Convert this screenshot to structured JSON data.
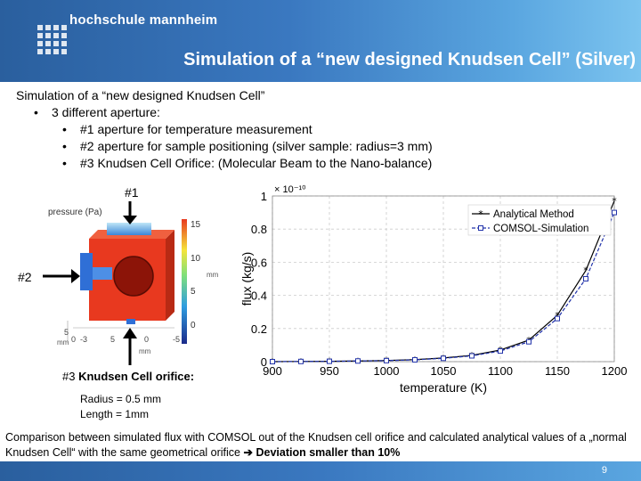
{
  "header": {
    "logo_text": "hochschule mannheim",
    "title": "Simulation of a “new designed Knudsen Cell” (Silver)"
  },
  "content": {
    "heading": "Simulation of a “new designed Knudsen Cell”",
    "bullet": "3 different aperture:",
    "sub_bullets": [
      "#1 aperture for temperature measurement",
      "#2 aperture for sample positioning (silver sample: radius=3 mm)",
      "#3 Knudsen Cell Orifice: (Molecular Beam to the Nano-balance)"
    ]
  },
  "simulation": {
    "label1": "#1",
    "label2": "#2",
    "label3_prefix": "#3 ",
    "label3_main": "Knudsen Cell orifice:",
    "colorbar_title": "pressure (Pa)",
    "colorbar_ticks": [
      "15",
      "10",
      "5",
      "0"
    ],
    "axis_unit": "mm",
    "x_ticks": [
      "5",
      "0",
      "-5"
    ],
    "y_ticks": [
      "5",
      "0",
      "-3"
    ],
    "radius": "Radius = 0.5 mm",
    "length": "Length = 1mm",
    "colors": {
      "cube": "#e8391f",
      "dark": "#8c1408",
      "blue": "#2f6fd6"
    }
  },
  "chart_data": {
    "type": "line",
    "xlabel": "temperature (K)",
    "ylabel": "flux (kg/s)",
    "scale_label": "× 10⁻¹⁰",
    "xlim": [
      900,
      1200
    ],
    "ylim": [
      0,
      1
    ],
    "xticks": [
      900,
      950,
      1000,
      1050,
      1100,
      1150,
      1200
    ],
    "yticks": [
      0,
      0.2,
      0.4,
      0.6,
      0.8,
      1
    ],
    "x": [
      900,
      925,
      950,
      975,
      1000,
      1025,
      1050,
      1075,
      1100,
      1125,
      1150,
      1175,
      1200
    ],
    "series": [
      {
        "name": "Analytical Method",
        "marker": "star",
        "color": "#000000",
        "values": [
          0.0,
          0.001,
          0.002,
          0.004,
          0.007,
          0.012,
          0.022,
          0.038,
          0.07,
          0.13,
          0.28,
          0.55,
          0.97
        ]
      },
      {
        "name": "COMSOL-Simulation",
        "marker": "square",
        "color": "#2233aa",
        "values": [
          0.0,
          0.001,
          0.002,
          0.004,
          0.006,
          0.011,
          0.02,
          0.035,
          0.064,
          0.12,
          0.26,
          0.5,
          0.9
        ]
      }
    ],
    "legend": "top-right"
  },
  "footer": {
    "text": "Comparison between simulated flux with COMSOL out of the Knudsen cell orifice and calculated analytical values of a „normal Knudsen Cell“ with the same geometrical orifice",
    "arrow": "➔",
    "conclusion": "Deviation smaller than 10%",
    "page": "9"
  }
}
